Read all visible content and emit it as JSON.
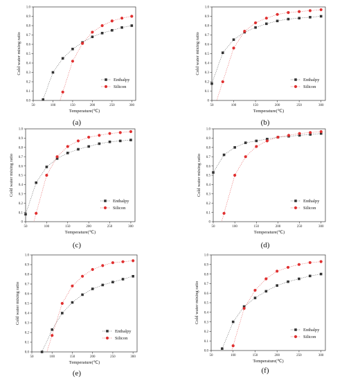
{
  "chart_data": [
    {
      "type": "scatter",
      "panel_label": "(a)",
      "xlabel": "Temperature(℃)",
      "ylabel": "Cold water mixing ratio",
      "xlim": [
        50,
        310
      ],
      "ylim": [
        0,
        1.0
      ],
      "xticks": [
        50,
        100,
        150,
        200,
        250,
        300
      ],
      "yticks": [
        0,
        0.1,
        0.2,
        0.3,
        0.4,
        0.5,
        0.6,
        0.7,
        0.8,
        0.9,
        1.0
      ],
      "ytick_labels": [
        "0.0",
        "0.1",
        "0.2",
        "0.3",
        "0.4",
        "0.5",
        "0.6",
        "0.7",
        "0.8",
        "0.9",
        "1.0"
      ],
      "legend_position": "lower-right",
      "series": [
        {
          "name": "Enthalpy",
          "color": "#333333",
          "marker": "square",
          "x": [
            75,
            100,
            125,
            150,
            175,
            200,
            225,
            250,
            275,
            300
          ],
          "y": [
            0.01,
            0.3,
            0.45,
            0.55,
            0.62,
            0.68,
            0.72,
            0.75,
            0.78,
            0.8
          ]
        },
        {
          "name": "Silicon",
          "color": "#e03030",
          "marker": "circle",
          "x": [
            125,
            150,
            175,
            200,
            225,
            250,
            275,
            300
          ],
          "y": [
            0.09,
            0.42,
            0.61,
            0.73,
            0.8,
            0.85,
            0.88,
            0.9
          ]
        }
      ]
    },
    {
      "type": "scatter",
      "panel_label": "(b)",
      "xlabel": "Temperature(℃)",
      "ylabel": "Cold water mixing ratio",
      "xlim": [
        50,
        310
      ],
      "ylim": [
        0,
        1.0
      ],
      "xticks": [
        50,
        100,
        150,
        200,
        250,
        300
      ],
      "yticks": [
        0,
        0.1,
        0.2,
        0.3,
        0.4,
        0.5,
        0.6,
        0.7,
        0.8,
        0.9,
        1.0
      ],
      "ytick_labels": [
        "0",
        "0.1",
        "0.2",
        "0.3",
        "0.4",
        "0.5",
        "0.6",
        "0.7",
        "0.8",
        "0.9",
        "1.0"
      ],
      "legend_position": "lower-right",
      "series": [
        {
          "name": "Enthalpy",
          "color": "#333333",
          "marker": "square",
          "x": [
            50,
            75,
            100,
            125,
            150,
            175,
            200,
            225,
            250,
            275,
            300
          ],
          "y": [
            0.18,
            0.51,
            0.65,
            0.73,
            0.78,
            0.82,
            0.85,
            0.87,
            0.88,
            0.89,
            0.9
          ]
        },
        {
          "name": "Silicon",
          "color": "#e03030",
          "marker": "circle",
          "x": [
            75,
            100,
            125,
            150,
            175,
            200,
            225,
            250,
            275,
            300
          ],
          "y": [
            0.2,
            0.56,
            0.74,
            0.83,
            0.88,
            0.92,
            0.94,
            0.95,
            0.96,
            0.97
          ]
        }
      ]
    },
    {
      "type": "scatter",
      "panel_label": "(c)",
      "xlabel": "Temperature(℃)",
      "ylabel": "Cold water mixing ratio",
      "xlim": [
        50,
        310
      ],
      "ylim": [
        0,
        1.0
      ],
      "xticks": [
        50,
        100,
        150,
        200,
        250,
        300
      ],
      "yticks": [
        0,
        0.1,
        0.2,
        0.3,
        0.4,
        0.5,
        0.6,
        0.7,
        0.8,
        0.9,
        1.0
      ],
      "ytick_labels": [
        "0",
        "0.1",
        "0.2",
        "0.3",
        "0.4",
        "0.5",
        "0.6",
        "0.7",
        "0.8",
        "0.9",
        "1.0"
      ],
      "legend_position": "lower-right",
      "series": [
        {
          "name": "Enthalpy",
          "color": "#333333",
          "marker": "square",
          "x": [
            50,
            75,
            100,
            125,
            150,
            175,
            200,
            225,
            250,
            275,
            300
          ],
          "y": [
            0.08,
            0.42,
            0.59,
            0.68,
            0.74,
            0.78,
            0.81,
            0.84,
            0.86,
            0.87,
            0.88
          ]
        },
        {
          "name": "Silicon",
          "color": "#e03030",
          "marker": "circle",
          "x": [
            75,
            100,
            125,
            150,
            175,
            200,
            225,
            250,
            275,
            300
          ],
          "y": [
            0.09,
            0.5,
            0.7,
            0.81,
            0.87,
            0.91,
            0.93,
            0.95,
            0.96,
            0.97
          ]
        }
      ]
    },
    {
      "type": "scatter",
      "panel_label": "(d)",
      "xlabel": "Temperature(℃)",
      "ylabel": "Cold water mixing ratio",
      "xlim": [
        50,
        310
      ],
      "ylim": [
        0,
        1.0
      ],
      "xticks": [
        50,
        100,
        150,
        200,
        250,
        300
      ],
      "yticks": [
        0,
        0.1,
        0.2,
        0.3,
        0.4,
        0.5,
        0.6,
        0.7,
        0.8,
        0.9,
        1.0
      ],
      "ytick_labels": [
        "0",
        "0.1",
        "0.2",
        "0.3",
        "0.4",
        "0.5",
        "0.6",
        "0.7",
        "0.8",
        "0.9",
        "1.0"
      ],
      "legend_position": "lower-right",
      "series": [
        {
          "name": "Enthalpy",
          "color": "#333333",
          "marker": "square",
          "x": [
            50,
            75,
            100,
            125,
            150,
            175,
            200,
            225,
            250,
            275,
            300
          ],
          "y": [
            0.53,
            0.72,
            0.8,
            0.85,
            0.87,
            0.89,
            0.91,
            0.92,
            0.93,
            0.94,
            0.95
          ]
        },
        {
          "name": "Silicon",
          "color": "#e03030",
          "marker": "circle",
          "x": [
            75,
            100,
            125,
            150,
            175,
            200,
            225,
            250,
            275,
            300
          ],
          "y": [
            0.09,
            0.5,
            0.7,
            0.81,
            0.87,
            0.91,
            0.93,
            0.95,
            0.96,
            0.97
          ]
        }
      ]
    },
    {
      "type": "scatter",
      "panel_label": "(e)",
      "xlabel": "Temperature(℃)",
      "ylabel": "Cold water mixing ratio",
      "xlim": [
        50,
        310
      ],
      "ylim": [
        0,
        1.0
      ],
      "xticks": [
        50,
        100,
        150,
        200,
        250,
        300
      ],
      "yticks": [
        0,
        0.1,
        0.2,
        0.3,
        0.4,
        0.5,
        0.6,
        0.7,
        0.8,
        0.9,
        1.0
      ],
      "ytick_labels": [
        "0.0",
        "0.1",
        "0.2",
        "0.3",
        "0.4",
        "0.5",
        "0.6",
        "0.7",
        "0.8",
        "0.9",
        "1.0"
      ],
      "legend_position": "lower-right",
      "series": [
        {
          "name": "Enthalpy",
          "color": "#333333",
          "marker": "square",
          "x": [
            75,
            100,
            125,
            150,
            175,
            200,
            225,
            250,
            275,
            300
          ],
          "y": [
            0.0,
            0.23,
            0.4,
            0.51,
            0.59,
            0.65,
            0.69,
            0.72,
            0.75,
            0.78
          ]
        },
        {
          "name": "Silicon",
          "color": "#e03030",
          "marker": "circle",
          "x": [
            100,
            125,
            150,
            175,
            200,
            225,
            250,
            275,
            300
          ],
          "y": [
            0.17,
            0.5,
            0.68,
            0.78,
            0.85,
            0.89,
            0.92,
            0.93,
            0.94
          ]
        }
      ]
    },
    {
      "type": "scatter",
      "panel_label": "(f)",
      "xlabel": "Temperature(℃)",
      "ylabel": "Cold water mixing ratio",
      "xlim": [
        50,
        310
      ],
      "ylim": [
        0,
        1.0
      ],
      "xticks": [
        50,
        100,
        150,
        200,
        250,
        300
      ],
      "yticks": [
        0,
        0.1,
        0.2,
        0.3,
        0.4,
        0.5,
        0.6,
        0.7,
        0.8,
        0.9,
        1.0
      ],
      "ytick_labels": [
        "0.0",
        "0.1",
        "0.2",
        "0.3",
        "0.4",
        "0.5",
        "0.6",
        "0.7",
        "0.8",
        "0.9",
        "1.0"
      ],
      "legend_position": "lower-right",
      "series": [
        {
          "name": "Enthalpy",
          "color": "#333333",
          "marker": "square",
          "x": [
            75,
            100,
            125,
            150,
            175,
            200,
            225,
            250,
            275,
            300
          ],
          "y": [
            0.02,
            0.3,
            0.46,
            0.55,
            0.62,
            0.68,
            0.72,
            0.75,
            0.78,
            0.8
          ]
        },
        {
          "name": "Silicon",
          "color": "#e03030",
          "marker": "circle",
          "x": [
            100,
            125,
            150,
            175,
            200,
            225,
            250,
            275,
            300
          ],
          "y": [
            0.05,
            0.44,
            0.63,
            0.75,
            0.83,
            0.87,
            0.9,
            0.92,
            0.93
          ]
        }
      ]
    }
  ]
}
